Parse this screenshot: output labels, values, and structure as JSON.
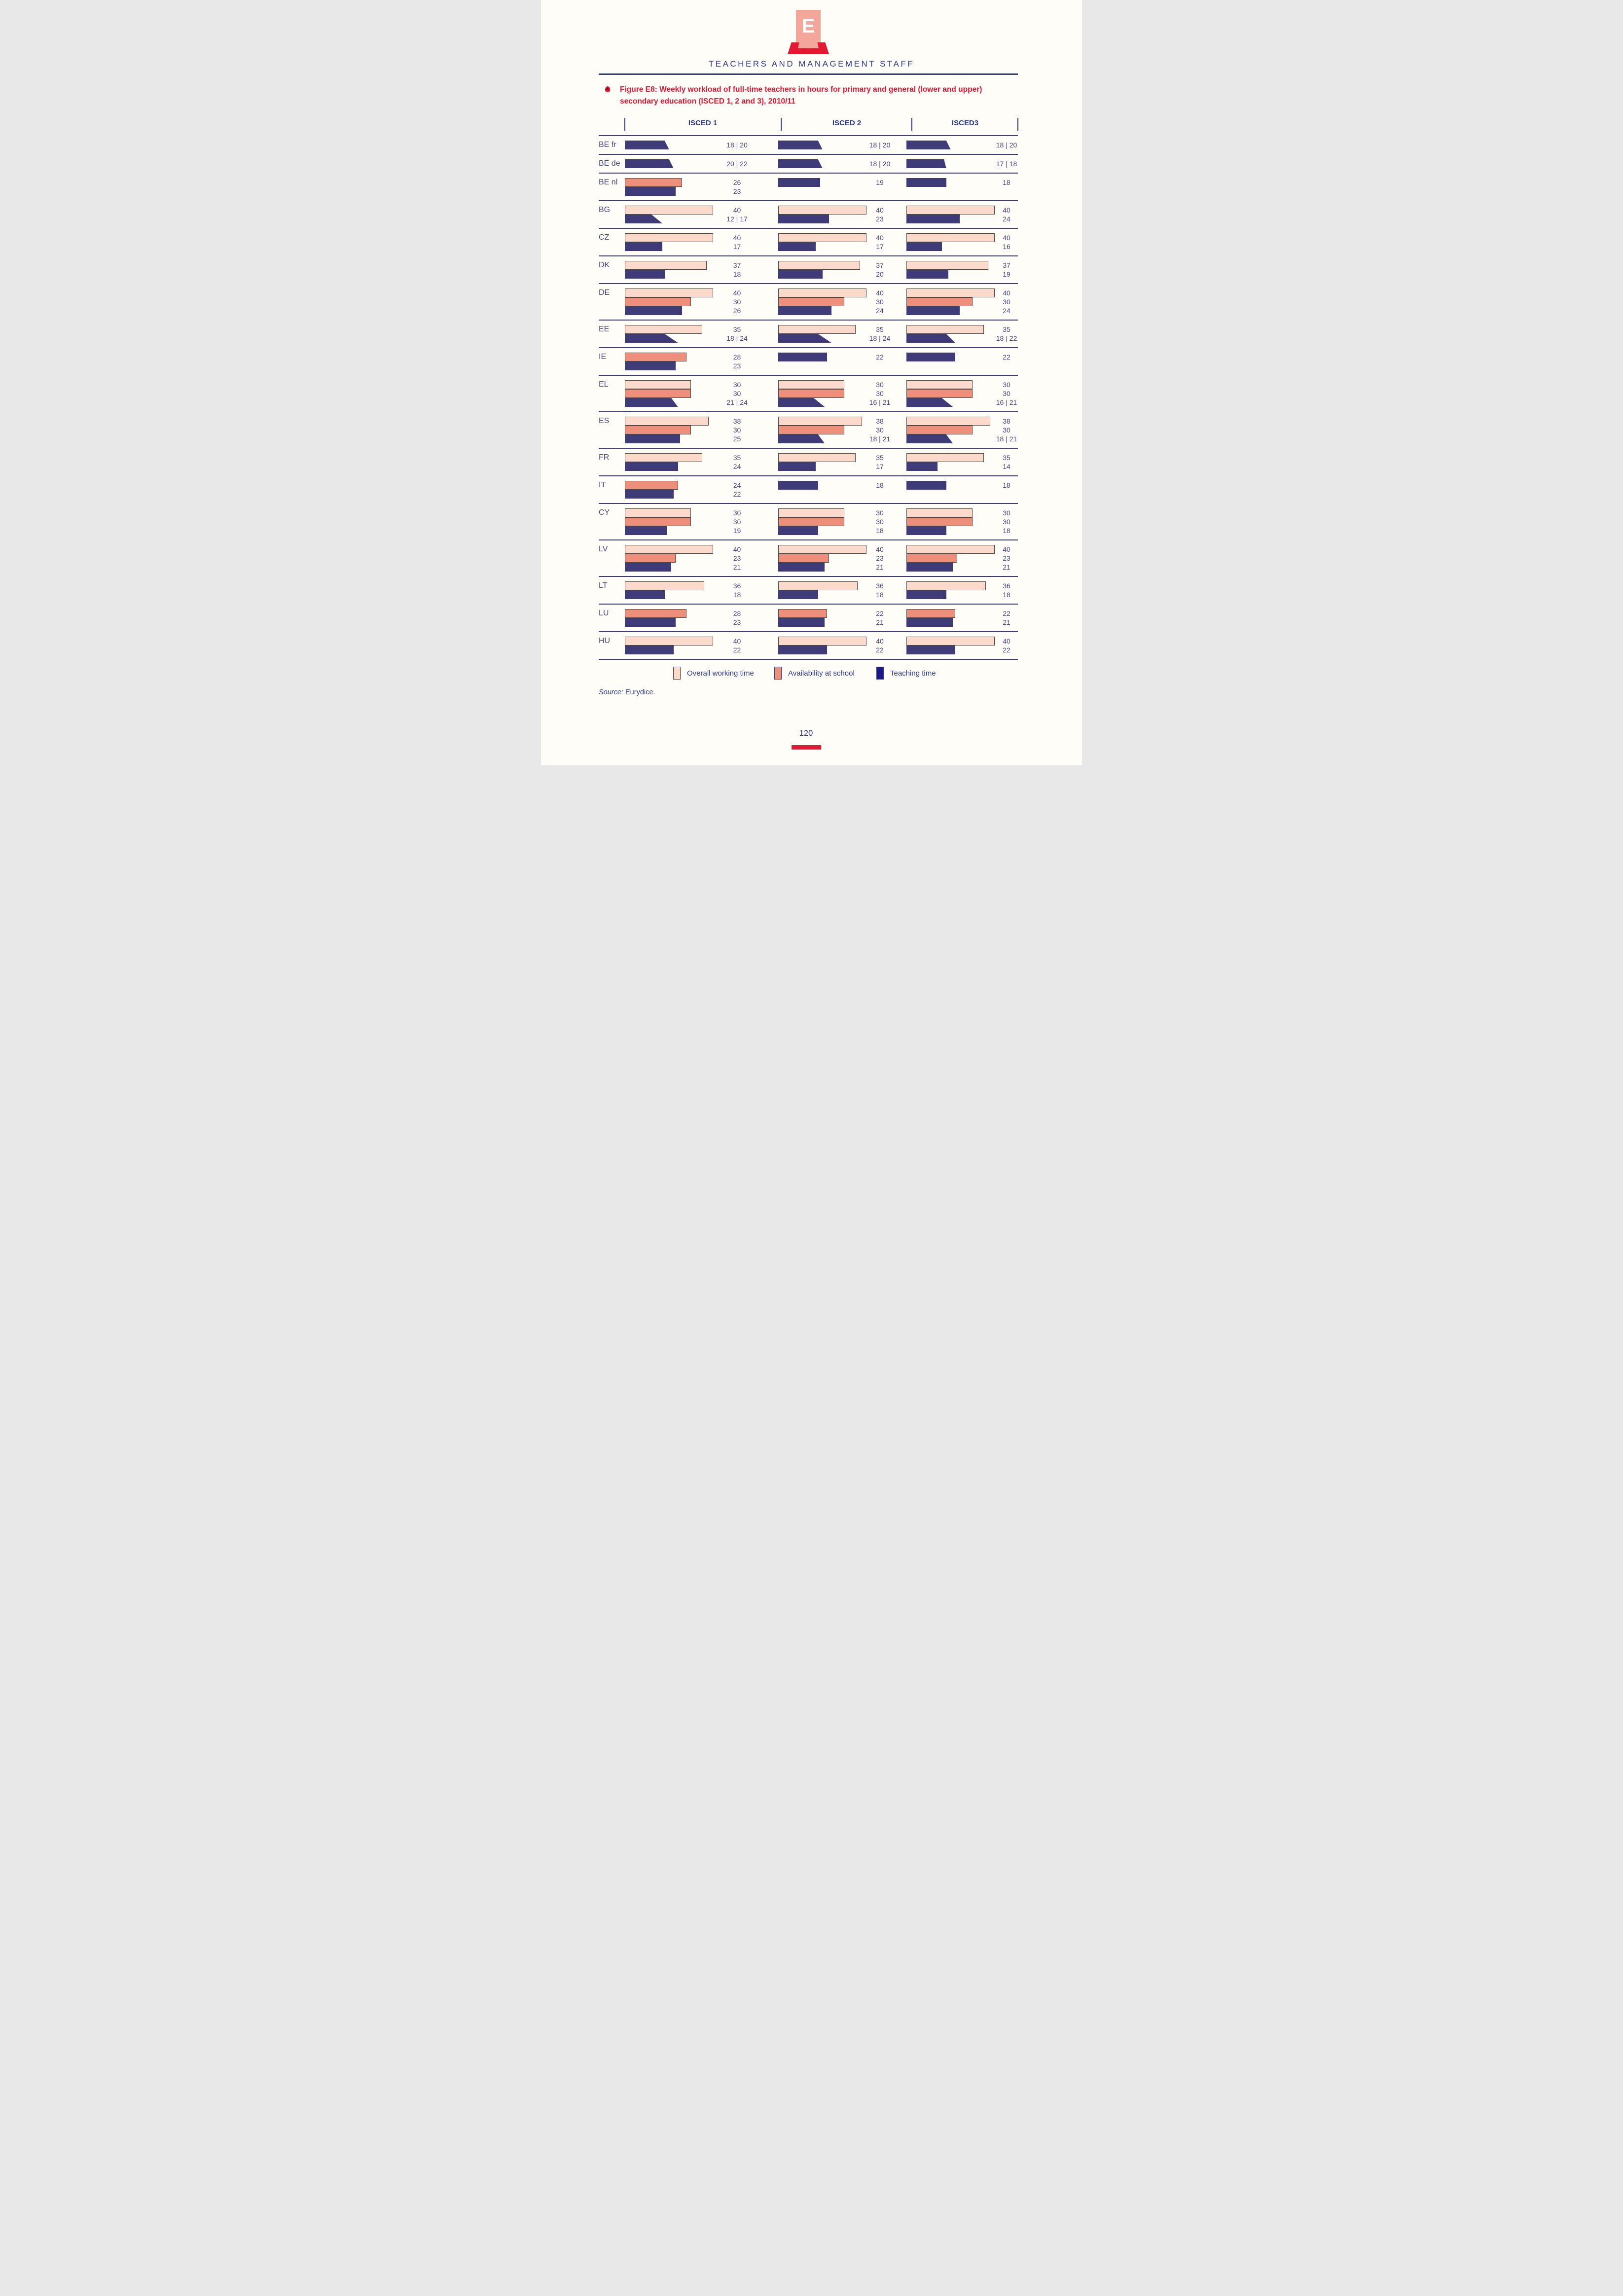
{
  "header": {
    "logo_letter": "E",
    "wordmark": "TEACHERS AND MANAGEMENT STAFF"
  },
  "figure": {
    "title": "Figure E8: Weekly workload of full-time teachers in hours for primary and general (lower and upper) secondary education (ISCED 1, 2 and 3), 2010/11"
  },
  "chart_data": {
    "type": "bar",
    "orientation": "horizontal",
    "value_unit": "hours per week",
    "xlim": [
      0,
      40
    ],
    "title": "Weekly workload of full-time teachers in hours (ISCED 1, 2 and 3), 2010/11",
    "columns": [
      "ISCED 1",
      "ISCED 2",
      "ISCED3"
    ],
    "measures": {
      "overall": "Overall working time",
      "availability": "Availability at school",
      "teaching": "Teaching time"
    },
    "range_note": "bars with low/high are drawn as trapezoids (top edge = low, bottom edge = high)",
    "rows": [
      {
        "country": "BE fr",
        "cells": [
          [
            {
              "type": "teaching",
              "low": 18,
              "high": 20
            }
          ],
          [
            {
              "type": "teaching",
              "low": 18,
              "high": 20
            }
          ],
          [
            {
              "type": "teaching",
              "low": 18,
              "high": 20
            }
          ]
        ]
      },
      {
        "country": "BE de",
        "cells": [
          [
            {
              "type": "teaching",
              "low": 20,
              "high": 22
            }
          ],
          [
            {
              "type": "teaching",
              "low": 18,
              "high": 20
            }
          ],
          [
            {
              "type": "teaching",
              "low": 17,
              "high": 18
            }
          ]
        ]
      },
      {
        "country": "BE nl",
        "cells": [
          [
            {
              "type": "availability",
              "value": 26
            },
            {
              "type": "teaching",
              "value": 23
            }
          ],
          [
            {
              "type": "teaching",
              "value": 19
            }
          ],
          [
            {
              "type": "teaching",
              "value": 18
            }
          ]
        ]
      },
      {
        "country": "BG",
        "cells": [
          [
            {
              "type": "overall",
              "value": 40
            },
            {
              "type": "teaching",
              "low": 12,
              "high": 17
            }
          ],
          [
            {
              "type": "overall",
              "value": 40
            },
            {
              "type": "teaching",
              "value": 23
            }
          ],
          [
            {
              "type": "overall",
              "value": 40
            },
            {
              "type": "teaching",
              "value": 24
            }
          ]
        ]
      },
      {
        "country": "CZ",
        "cells": [
          [
            {
              "type": "overall",
              "value": 40
            },
            {
              "type": "teaching",
              "value": 17
            }
          ],
          [
            {
              "type": "overall",
              "value": 40
            },
            {
              "type": "teaching",
              "value": 17
            }
          ],
          [
            {
              "type": "overall",
              "value": 40
            },
            {
              "type": "teaching",
              "value": 16
            }
          ]
        ]
      },
      {
        "country": "DK",
        "cells": [
          [
            {
              "type": "overall",
              "value": 37
            },
            {
              "type": "teaching",
              "value": 18
            }
          ],
          [
            {
              "type": "overall",
              "value": 37
            },
            {
              "type": "teaching",
              "value": 20
            }
          ],
          [
            {
              "type": "overall",
              "value": 37
            },
            {
              "type": "teaching",
              "value": 19
            }
          ]
        ]
      },
      {
        "country": "DE",
        "cells": [
          [
            {
              "type": "overall",
              "value": 40
            },
            {
              "type": "availability",
              "value": 30
            },
            {
              "type": "teaching",
              "value": 26
            }
          ],
          [
            {
              "type": "overall",
              "value": 40
            },
            {
              "type": "availability",
              "value": 30
            },
            {
              "type": "teaching",
              "value": 24
            }
          ],
          [
            {
              "type": "overall",
              "value": 40
            },
            {
              "type": "availability",
              "value": 30
            },
            {
              "type": "teaching",
              "value": 24
            }
          ]
        ]
      },
      {
        "country": "EE",
        "cells": [
          [
            {
              "type": "overall",
              "value": 35
            },
            {
              "type": "teaching",
              "low": 18,
              "high": 24
            }
          ],
          [
            {
              "type": "overall",
              "value": 35
            },
            {
              "type": "teaching",
              "low": 18,
              "high": 24
            }
          ],
          [
            {
              "type": "overall",
              "value": 35
            },
            {
              "type": "teaching",
              "low": 18,
              "high": 22
            }
          ]
        ]
      },
      {
        "country": "IE",
        "cells": [
          [
            {
              "type": "availability",
              "value": 28
            },
            {
              "type": "teaching",
              "value": 23
            }
          ],
          [
            {
              "type": "teaching",
              "value": 22
            }
          ],
          [
            {
              "type": "teaching",
              "value": 22
            }
          ]
        ]
      },
      {
        "country": "EL",
        "cells": [
          [
            {
              "type": "overall",
              "value": 30
            },
            {
              "type": "availability",
              "value": 30
            },
            {
              "type": "teaching",
              "low": 21,
              "high": 24
            }
          ],
          [
            {
              "type": "overall",
              "value": 30
            },
            {
              "type": "availability",
              "value": 30
            },
            {
              "type": "teaching",
              "low": 16,
              "high": 21
            }
          ],
          [
            {
              "type": "overall",
              "value": 30
            },
            {
              "type": "availability",
              "value": 30
            },
            {
              "type": "teaching",
              "low": 16,
              "high": 21
            }
          ]
        ]
      },
      {
        "country": "ES",
        "cells": [
          [
            {
              "type": "overall",
              "value": 38
            },
            {
              "type": "availability",
              "value": 30
            },
            {
              "type": "teaching",
              "value": 25
            }
          ],
          [
            {
              "type": "overall",
              "value": 38
            },
            {
              "type": "availability",
              "value": 30
            },
            {
              "type": "teaching",
              "low": 18,
              "high": 21
            }
          ],
          [
            {
              "type": "overall",
              "value": 38
            },
            {
              "type": "availability",
              "value": 30
            },
            {
              "type": "teaching",
              "low": 18,
              "high": 21
            }
          ]
        ]
      },
      {
        "country": "FR",
        "cells": [
          [
            {
              "type": "overall",
              "value": 35
            },
            {
              "type": "teaching",
              "value": 24
            }
          ],
          [
            {
              "type": "overall",
              "value": 35
            },
            {
              "type": "teaching",
              "value": 17
            }
          ],
          [
            {
              "type": "overall",
              "value": 35
            },
            {
              "type": "teaching",
              "value": 14
            }
          ]
        ]
      },
      {
        "country": "IT",
        "cells": [
          [
            {
              "type": "availability",
              "value": 24
            },
            {
              "type": "teaching",
              "value": 22
            }
          ],
          [
            {
              "type": "teaching",
              "value": 18
            }
          ],
          [
            {
              "type": "teaching",
              "value": 18
            }
          ]
        ]
      },
      {
        "country": "CY",
        "cells": [
          [
            {
              "type": "overall",
              "value": 30
            },
            {
              "type": "availability",
              "value": 30
            },
            {
              "type": "teaching",
              "value": 19
            }
          ],
          [
            {
              "type": "overall",
              "value": 30
            },
            {
              "type": "availability",
              "value": 30
            },
            {
              "type": "teaching",
              "value": 18
            }
          ],
          [
            {
              "type": "overall",
              "value": 30
            },
            {
              "type": "availability",
              "value": 30
            },
            {
              "type": "teaching",
              "value": 18
            }
          ]
        ]
      },
      {
        "country": "LV",
        "cells": [
          [
            {
              "type": "overall",
              "value": 40
            },
            {
              "type": "availability",
              "value": 23
            },
            {
              "type": "teaching",
              "value": 21
            }
          ],
          [
            {
              "type": "overall",
              "value": 40
            },
            {
              "type": "availability",
              "value": 23
            },
            {
              "type": "teaching",
              "value": 21
            }
          ],
          [
            {
              "type": "overall",
              "value": 40
            },
            {
              "type": "availability",
              "value": 23
            },
            {
              "type": "teaching",
              "value": 21
            }
          ]
        ]
      },
      {
        "country": "LT",
        "cells": [
          [
            {
              "type": "overall",
              "value": 36
            },
            {
              "type": "teaching",
              "value": 18
            }
          ],
          [
            {
              "type": "overall",
              "value": 36
            },
            {
              "type": "teaching",
              "value": 18
            }
          ],
          [
            {
              "type": "overall",
              "value": 36
            },
            {
              "type": "teaching",
              "value": 18
            }
          ]
        ]
      },
      {
        "country": "LU",
        "cells": [
          [
            {
              "type": "availability",
              "value": 28
            },
            {
              "type": "teaching",
              "value": 23
            }
          ],
          [
            {
              "type": "availability",
              "value": 22
            },
            {
              "type": "teaching",
              "value": 21
            }
          ],
          [
            {
              "type": "availability",
              "value": 22
            },
            {
              "type": "teaching",
              "value": 21
            }
          ]
        ]
      },
      {
        "country": "HU",
        "cells": [
          [
            {
              "type": "overall",
              "value": 40
            },
            {
              "type": "teaching",
              "value": 22
            }
          ],
          [
            {
              "type": "overall",
              "value": 40
            },
            {
              "type": "teaching",
              "value": 22
            }
          ],
          [
            {
              "type": "overall",
              "value": 40
            },
            {
              "type": "teaching",
              "value": 22
            }
          ]
        ]
      }
    ]
  },
  "legend": [
    {
      "key": "overall",
      "label": "Overall working time"
    },
    {
      "key": "availability",
      "label": "Availability at school"
    },
    {
      "key": "teaching",
      "label": "Teaching time"
    }
  ],
  "source": {
    "label": "Source:",
    "text": " Eurydice."
  },
  "footer": {
    "page_number": "120"
  },
  "colors": {
    "blue": "#2B3990",
    "red": "#E31933",
    "overall": "#FBDACB",
    "availability": "#ED8F7A",
    "teaching": "#3E3B78",
    "legend_teaching": "#1B1B8A",
    "separator": "#3C3C78",
    "text_navy": "#45457F",
    "logo_pink": "#F3A79B",
    "bg": "#FFFDF7"
  }
}
